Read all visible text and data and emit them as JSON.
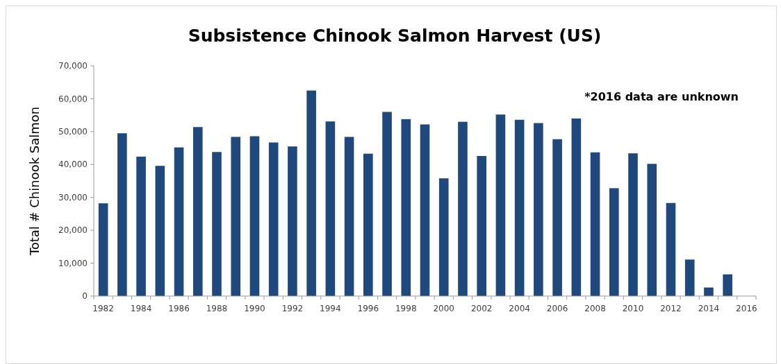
{
  "chart_data": {
    "type": "bar",
    "title": "Subsistence Chinook Salmon Harvest (US)",
    "ylabel": "Total # Chinook Salmon",
    "categories": [
      "1982",
      null,
      "1984",
      null,
      "1986",
      null,
      "1988",
      null,
      "1990",
      null,
      "1992",
      null,
      "1994",
      null,
      "1996",
      null,
      "1998",
      null,
      "2000",
      null,
      "2002",
      null,
      "2004",
      null,
      "2006",
      null,
      "2008",
      null,
      "2010",
      null,
      "2012",
      null,
      "2014",
      null,
      "2016"
    ],
    "values": [
      28200,
      49500,
      42400,
      39600,
      45200,
      51400,
      43800,
      48400,
      48600,
      46700,
      45500,
      62500,
      53100,
      48400,
      43300,
      56000,
      53800,
      52200,
      35800,
      53000,
      42600,
      55200,
      53600,
      52600,
      47700,
      54000,
      43700,
      32800,
      43400,
      40200,
      28300,
      11100,
      2600,
      6600,
      null
    ],
    "color": "#1f497d",
    "ylim": [
      0,
      70000
    ],
    "yticks": [
      {
        "value": 0,
        "label": "0"
      },
      {
        "value": 10000,
        "label": "10,000"
      },
      {
        "value": 20000,
        "label": "20,000"
      },
      {
        "value": 30000,
        "label": "30,000"
      },
      {
        "value": 40000,
        "label": "40,000"
      },
      {
        "value": 50000,
        "label": "50,000"
      },
      {
        "value": 60000,
        "label": "60,000"
      },
      {
        "value": 70000,
        "label": "70,000"
      }
    ],
    "annotations": [
      "*2016 data are unknown"
    ]
  }
}
